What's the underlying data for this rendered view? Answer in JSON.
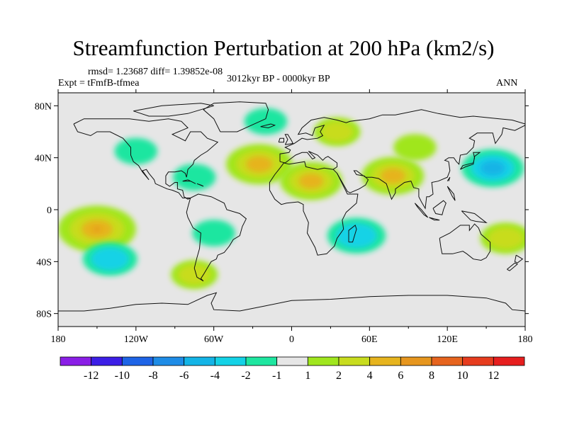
{
  "chart_data": {
    "type": "heatmap",
    "title": "Streamfunction Perturbation at 200 hPa (km2/s)",
    "stats_line": "rmsd= 1.23687 diff= 1.39852e-08",
    "experiment": "Expt = tFmfB-tfmea",
    "period": "3012kyr BP - 0000kyr BP",
    "season": "ANN",
    "xlim": [
      -180,
      180
    ],
    "ylim": [
      -90,
      90
    ],
    "x_ticks": [
      {
        "value": -180,
        "label": "180"
      },
      {
        "value": -120,
        "label": "120W"
      },
      {
        "value": -60,
        "label": "60W"
      },
      {
        "value": 0,
        "label": "0"
      },
      {
        "value": 60,
        "label": "60E"
      },
      {
        "value": 120,
        "label": "120E"
      },
      {
        "value": 180,
        "label": "180"
      }
    ],
    "y_ticks": [
      {
        "value": 80,
        "label": "80N"
      },
      {
        "value": 40,
        "label": "40N"
      },
      {
        "value": 0,
        "label": "0"
      },
      {
        "value": -40,
        "label": "40S"
      },
      {
        "value": -80,
        "label": "80S"
      }
    ],
    "colorbar": {
      "boundaries": [
        "-12",
        "-10",
        "-8",
        "-6",
        "-4",
        "-2",
        "-1",
        "1",
        "2",
        "4",
        "6",
        "8",
        "10",
        "12"
      ],
      "colors": [
        "#8a1ee6",
        "#3c1ee6",
        "#1e64e6",
        "#1e8ce6",
        "#14b4e6",
        "#14d2e6",
        "#1ee6a0",
        "#e6e6e6",
        "#a0e61e",
        "#c8dc1e",
        "#e6b41e",
        "#e6961e",
        "#e6641e",
        "#e63c1e",
        "#e61e1e"
      ]
    },
    "anomaly_features": [
      {
        "lon": -25,
        "lat": 35,
        "value": 4.5
      },
      {
        "lon": 15,
        "lat": 22,
        "value": 4
      },
      {
        "lon": 35,
        "lat": 60,
        "value": 2
      },
      {
        "lon": 78,
        "lat": 26,
        "value": 4
      },
      {
        "lon": 95,
        "lat": 48,
        "value": 1.5
      },
      {
        "lon": 155,
        "lat": 32,
        "value": -4
      },
      {
        "lon": -150,
        "lat": -15,
        "value": 6
      },
      {
        "lon": -140,
        "lat": -38,
        "value": -3
      },
      {
        "lon": -75,
        "lat": -50,
        "value": 2
      },
      {
        "lon": 50,
        "lat": -20,
        "value": -3.5
      },
      {
        "lon": 165,
        "lat": -22,
        "value": 2.5
      },
      {
        "lon": -120,
        "lat": 45,
        "value": -1.5
      },
      {
        "lon": -75,
        "lat": 25,
        "value": -1.5
      },
      {
        "lon": -60,
        "lat": -18,
        "value": -1.5
      },
      {
        "lon": -20,
        "lat": 68,
        "value": -1.5
      }
    ]
  }
}
